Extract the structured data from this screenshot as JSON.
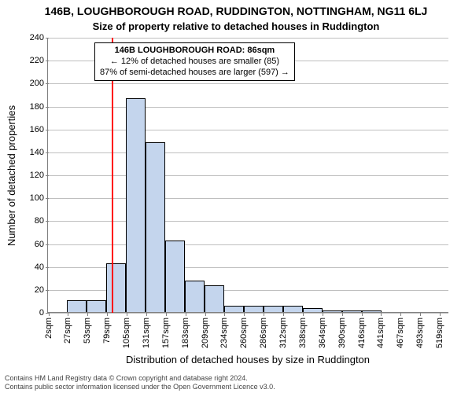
{
  "chart": {
    "type": "histogram",
    "title1": "146B, LOUGHBOROUGH ROAD, RUDDINGTON, NOTTINGHAM, NG11 6LJ",
    "title2": "Size of property relative to detached houses in Ruddington",
    "ylabel": "Number of detached properties",
    "xlabel": "Distribution of detached houses by size in Ruddington",
    "ylim": [
      0,
      240
    ],
    "ytick_step": 20,
    "xtick_labels": [
      "2sqm",
      "27sqm",
      "53sqm",
      "79sqm",
      "105sqm",
      "131sqm",
      "157sqm",
      "183sqm",
      "209sqm",
      "234sqm",
      "260sqm",
      "286sqm",
      "312sqm",
      "338sqm",
      "364sqm",
      "390sqm",
      "416sqm",
      "441sqm",
      "467sqm",
      "493sqm",
      "519sqm"
    ],
    "xtick_positions": [
      2,
      27,
      53,
      79,
      105,
      131,
      157,
      183,
      209,
      234,
      260,
      286,
      312,
      338,
      364,
      390,
      416,
      441,
      467,
      493,
      519
    ],
    "x_range": [
      0,
      530
    ],
    "bars": {
      "bin_width": 26,
      "edges": [
        0,
        26,
        52,
        78,
        104,
        130,
        156,
        182,
        208,
        234,
        260,
        286,
        312,
        338,
        364,
        390,
        416,
        442,
        468,
        494,
        520
      ],
      "values": [
        0,
        11,
        11,
        43,
        187,
        149,
        63,
        28,
        24,
        6,
        6,
        6,
        6,
        4,
        2,
        2,
        2,
        0,
        0,
        0,
        0
      ]
    },
    "bar_fill": "#c4d5ed",
    "bar_edge": "#000000",
    "marker": {
      "x": 86,
      "color": "#ff0000"
    },
    "annotation": {
      "line1": "146B LOUGHBOROUGH ROAD: 86sqm",
      "line2": "← 12% of detached houses are smaller (85)",
      "line3": "87% of semi-detached houses are larger (597) →",
      "box_border": "#000000",
      "box_bg": "#ffffff"
    },
    "background_color": "#ffffff",
    "grid_color": "#808080",
    "axis_color": "#808080",
    "title_fontsize": 14,
    "subtitle_fontsize": 13,
    "label_fontsize": 13,
    "tick_fontsize": 11,
    "annotation_fontsize": 11,
    "copyright_fontsize": 9
  },
  "copyright": {
    "line1": "Contains HM Land Registry data © Crown copyright and database right 2024.",
    "line2": "Contains public sector information licensed under the Open Government Licence v3.0."
  }
}
